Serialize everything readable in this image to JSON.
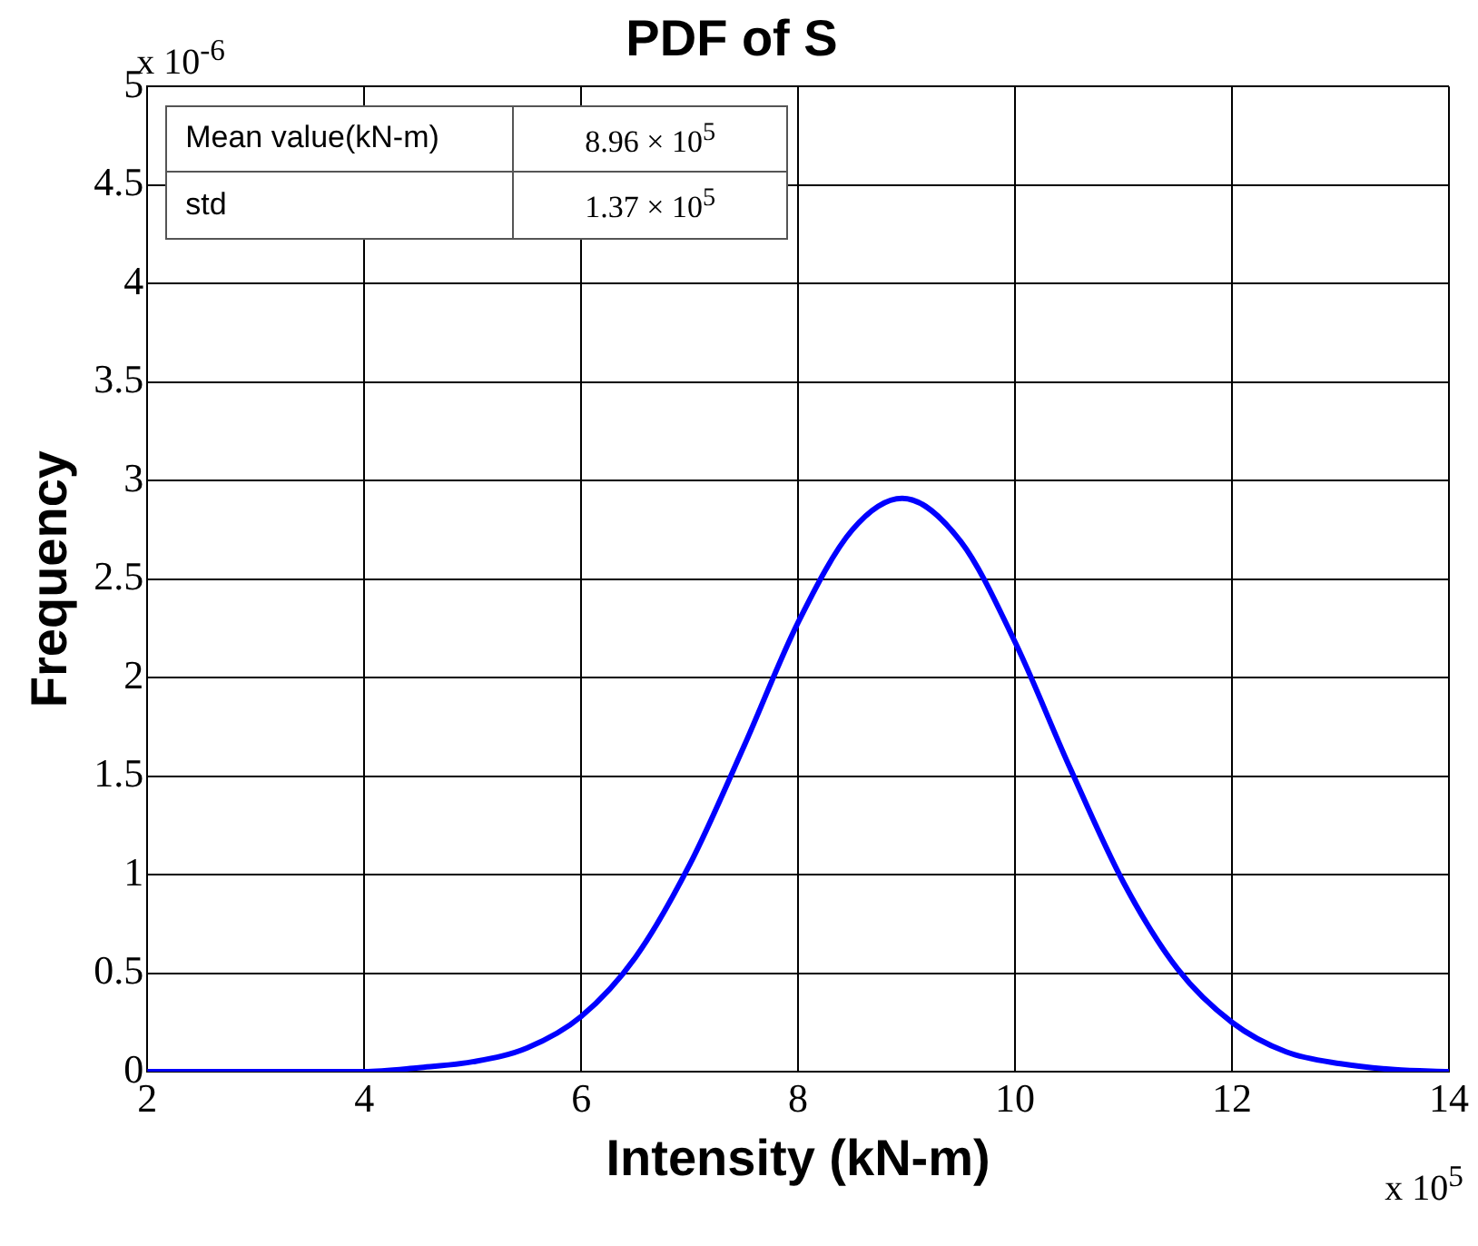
{
  "chart_data": {
    "type": "line",
    "title": "PDF of S",
    "xlabel": "Intensity (kN-m)",
    "ylabel": "Frequency",
    "x": [
      2,
      3,
      3.5,
      4,
      4.5,
      5,
      5.5,
      6,
      6.5,
      7,
      7.5,
      8,
      8.5,
      8.96,
      9.5,
      10,
      10.5,
      11,
      11.5,
      12,
      12.5,
      13,
      13.5,
      14
    ],
    "series": [
      {
        "color": "#0000ff",
        "values": [
          0,
          0,
          0,
          0,
          0.02,
          0.05,
          0.12,
          0.28,
          0.58,
          1.05,
          1.65,
          2.28,
          2.75,
          2.91,
          2.69,
          2.18,
          1.55,
          0.96,
          0.52,
          0.25,
          0.1,
          0.04,
          0.01,
          0
        ]
      }
    ],
    "xlim": [
      2,
      14
    ],
    "xticks": [
      2,
      4,
      6,
      8,
      10,
      12,
      14
    ],
    "ylim": [
      0,
      5
    ],
    "yticks": [
      0,
      0.5,
      1,
      1.5,
      2,
      2.5,
      3,
      3.5,
      4,
      4.5,
      5
    ],
    "grid": true,
    "legend": false,
    "marker": "none",
    "line_style": "solid",
    "annotations": [
      "x 10$^{-6}$",
      "x 10$^{5}$",
      "Mean value(kN-m)",
      "8.96 × 10$^{5}$",
      "std",
      "1.37 × 10$^{5}$"
    ]
  }
}
